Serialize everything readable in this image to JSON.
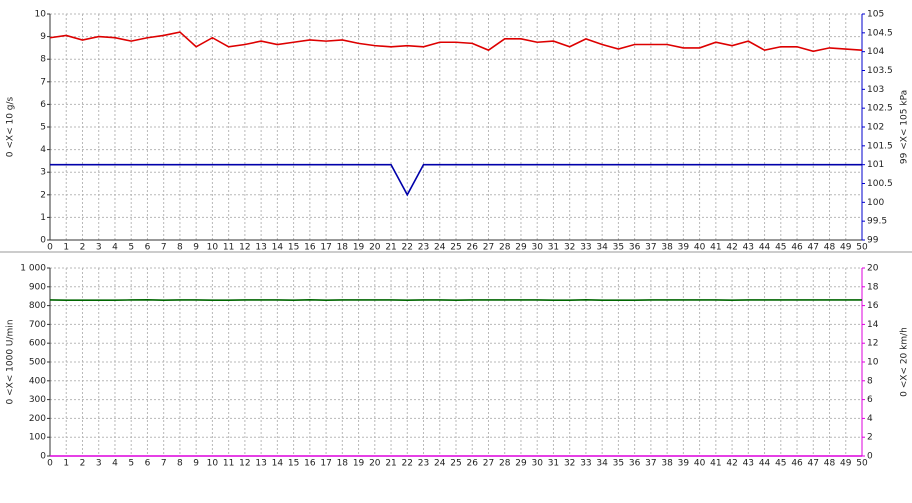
{
  "chart_data": [
    {
      "type": "line",
      "y_label": "0  <X<  10 g/s",
      "y2_label": "99  <X<  105 kPa",
      "xlim": [
        0,
        50
      ],
      "xticks": [
        0,
        1,
        2,
        3,
        4,
        5,
        6,
        7,
        8,
        9,
        10,
        11,
        12,
        13,
        14,
        15,
        16,
        17,
        18,
        19,
        20,
        21,
        22,
        23,
        24,
        25,
        26,
        27,
        28,
        29,
        30,
        31,
        32,
        33,
        34,
        35,
        36,
        37,
        38,
        39,
        40,
        41,
        42,
        43,
        44,
        45,
        46,
        47,
        48,
        49,
        50
      ],
      "ylim": [
        0,
        10
      ],
      "yticks": [
        0,
        1,
        2,
        3,
        4,
        5,
        6,
        7,
        8,
        9,
        10
      ],
      "y2lim": [
        99,
        105
      ],
      "y2ticks": [
        99,
        99.5,
        100,
        100.5,
        101,
        101.5,
        102,
        102.5,
        103,
        103.5,
        104,
        104.5,
        105
      ],
      "y2color": "#0000cc",
      "grid": true,
      "x": [
        0,
        1,
        2,
        3,
        4,
        5,
        6,
        7,
        8,
        9,
        10,
        11,
        12,
        13,
        14,
        15,
        16,
        17,
        18,
        19,
        20,
        21,
        22,
        23,
        24,
        25,
        26,
        27,
        28,
        29,
        30,
        31,
        32,
        33,
        34,
        35,
        36,
        37,
        38,
        39,
        40,
        41,
        42,
        43,
        44,
        45,
        46,
        47,
        48,
        49,
        50
      ],
      "series": [
        {
          "color": "#dd0000",
          "axis": "y",
          "values": [
            8.95,
            9.05,
            8.85,
            9.0,
            8.95,
            8.8,
            8.95,
            9.05,
            9.2,
            8.55,
            8.95,
            8.55,
            8.65,
            8.8,
            8.65,
            8.75,
            8.85,
            8.8,
            8.85,
            8.7,
            8.6,
            8.55,
            8.6,
            8.55,
            8.75,
            8.75,
            8.7,
            8.4,
            8.9,
            8.9,
            8.75,
            8.8,
            8.55,
            8.9,
            8.65,
            8.45,
            8.65,
            8.65,
            8.65,
            8.5,
            8.5,
            8.75,
            8.6,
            8.8,
            8.4,
            8.55,
            8.55,
            8.35,
            8.5,
            8.45,
            8.4
          ]
        },
        {
          "color": "#0000aa",
          "axis": "y2",
          "values": [
            101,
            101,
            101,
            101,
            101,
            101,
            101,
            101,
            101,
            101,
            101,
            101,
            101,
            101,
            101,
            101,
            101,
            101,
            101,
            101,
            101,
            101,
            100.2,
            101,
            101,
            101,
            101,
            101,
            101,
            101,
            101,
            101,
            101,
            101,
            101,
            101,
            101,
            101,
            101,
            101,
            101,
            101,
            101,
            101,
            101,
            101,
            101,
            101,
            101,
            101,
            101
          ]
        }
      ]
    },
    {
      "type": "line",
      "y_label": "0  <X<  1000 U/min",
      "y2_label": "0  <X<  20 km/h",
      "xlim": [
        0,
        50
      ],
      "xticks": [
        0,
        1,
        2,
        3,
        4,
        5,
        6,
        7,
        8,
        9,
        10,
        11,
        12,
        13,
        14,
        15,
        16,
        17,
        18,
        19,
        20,
        21,
        22,
        23,
        24,
        25,
        26,
        27,
        28,
        29,
        30,
        31,
        32,
        33,
        34,
        35,
        36,
        37,
        38,
        39,
        40,
        41,
        42,
        43,
        44,
        45,
        46,
        47,
        48,
        49,
        50
      ],
      "ylim": [
        0,
        1000
      ],
      "yticks": [
        0,
        100,
        200,
        300,
        400,
        500,
        600,
        700,
        800,
        900,
        {
          "value": 1000,
          "label": "1 000"
        }
      ],
      "y2lim": [
        0,
        20
      ],
      "y2ticks": [
        0,
        2,
        4,
        6,
        8,
        10,
        12,
        14,
        16,
        18,
        20
      ],
      "y2color": "#dd00dd",
      "grid": true,
      "x": [
        0,
        1,
        2,
        3,
        4,
        5,
        6,
        7,
        8,
        9,
        10,
        11,
        12,
        13,
        14,
        15,
        16,
        17,
        18,
        19,
        20,
        21,
        22,
        23,
        24,
        25,
        26,
        27,
        28,
        29,
        30,
        31,
        32,
        33,
        34,
        35,
        36,
        37,
        38,
        39,
        40,
        41,
        42,
        43,
        44,
        45,
        46,
        47,
        48,
        49,
        50
      ],
      "series": [
        {
          "color": "#006600",
          "axis": "y",
          "values": [
            830,
            829,
            829,
            829,
            829,
            830,
            831,
            829,
            830,
            830,
            829,
            829,
            830,
            830,
            830,
            829,
            831,
            829,
            830,
            830,
            830,
            830,
            829,
            830,
            830,
            829,
            830,
            830,
            830,
            830,
            830,
            829,
            829,
            831,
            829,
            829,
            829,
            830,
            830,
            830,
            830,
            830,
            829,
            830,
            830,
            830,
            830,
            830,
            830,
            830,
            830
          ]
        },
        {
          "color": "#dd00dd",
          "axis": "y2",
          "values": [
            0,
            0,
            0,
            0,
            0,
            0,
            0,
            0,
            0,
            0,
            0,
            0,
            0,
            0,
            0,
            0,
            0,
            0,
            0,
            0,
            0,
            0,
            0,
            0,
            0,
            0,
            0,
            0,
            0,
            0,
            0,
            0,
            0,
            0,
            0,
            0,
            0,
            0,
            0,
            0,
            0,
            0,
            0,
            0,
            0,
            0,
            0,
            0,
            0,
            0,
            0
          ]
        }
      ]
    }
  ]
}
